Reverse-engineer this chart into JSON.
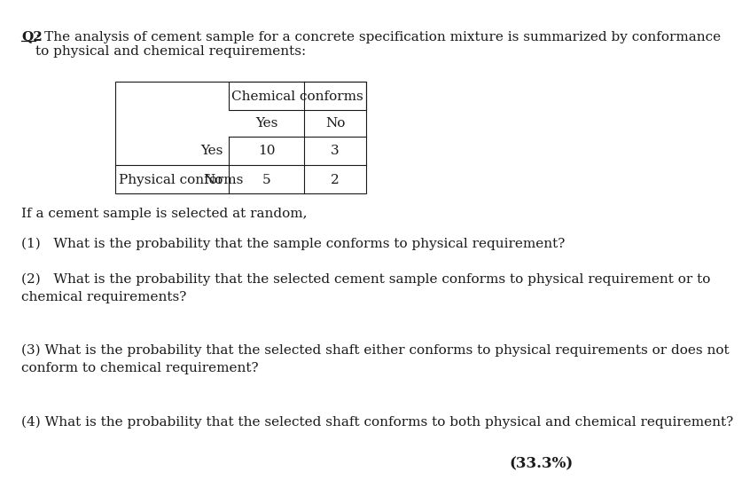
{
  "title_label": "Q2",
  "title_text": ": The analysis of cement sample for a concrete specification mixture is summarized by conformance\nto physical and chemical requirements:",
  "table_header": "Chemical conforms",
  "col_headers": [
    "Yes",
    "No"
  ],
  "row_headers": [
    "Yes",
    "No"
  ],
  "row_label": "Physical conforms",
  "table_data": [
    [
      10,
      3
    ],
    [
      5,
      2
    ]
  ],
  "intro_text": "If a cement sample is selected at random,",
  "questions": [
    "(1)   What is the probability that the sample conforms to physical requirement?",
    "(2)   What is the probability that the selected cement sample conforms to physical requirement or to\nchemical requirements?",
    "(3) What is the probability that the selected shaft either conforms to physical requirements or does not\nconform to chemical requirement?",
    "(4) What is the probability that the selected shaft conforms to both physical and chemical requirement?"
  ],
  "answer": "(33.3%)",
  "bg_color": "#ffffff",
  "text_color": "#1a1a1a",
  "font_size": 11
}
